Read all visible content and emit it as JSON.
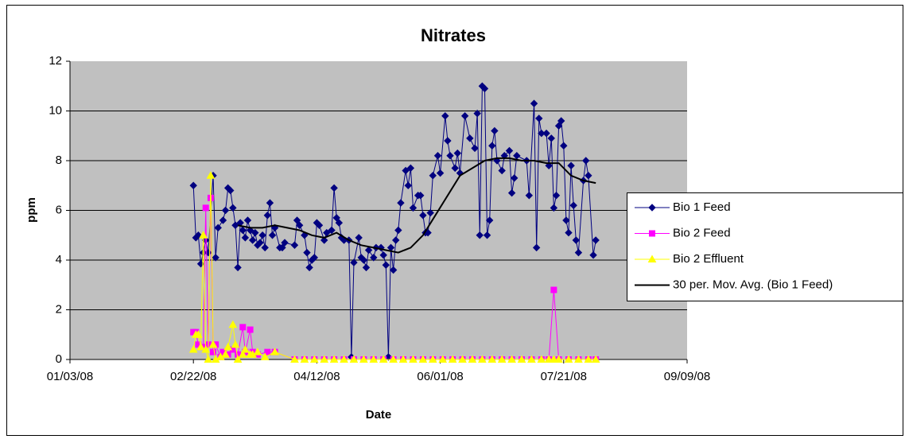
{
  "chart_data": {
    "type": "line",
    "title": "Nitrates",
    "xlabel": "Date",
    "ylabel": "ppm",
    "xlim": [
      "2008-01-03",
      "2008-09-09"
    ],
    "xticks": [
      {
        "value": "2008-01-03",
        "label": "01/03/08"
      },
      {
        "value": "2008-02-22",
        "label": "02/22/08"
      },
      {
        "value": "2008-04-12",
        "label": "04/12/08"
      },
      {
        "value": "2008-06-01",
        "label": "06/01/08"
      },
      {
        "value": "2008-07-21",
        "label": "07/21/08"
      },
      {
        "value": "2008-09-09",
        "label": "09/09/08"
      }
    ],
    "ylim": [
      0,
      12
    ],
    "yticks": [
      0,
      2,
      4,
      6,
      8,
      10,
      12
    ],
    "grid": true,
    "legend": "right",
    "series": [
      {
        "name": "Bio 1 Feed",
        "color": "#000080",
        "marker": "diamond",
        "x": [
          "2008-02-22",
          "2008-02-23",
          "2008-02-24",
          "2008-02-25",
          "2008-02-26",
          "2008-02-27",
          "2008-02-28",
          "2008-03-01",
          "2008-03-02",
          "2008-03-03",
          "2008-03-05",
          "2008-03-06",
          "2008-03-07",
          "2008-03-08",
          "2008-03-09",
          "2008-03-10",
          "2008-03-11",
          "2008-03-12",
          "2008-03-13",
          "2008-03-14",
          "2008-03-15",
          "2008-03-16",
          "2008-03-17",
          "2008-03-18",
          "2008-03-19",
          "2008-03-20",
          "2008-03-21",
          "2008-03-22",
          "2008-03-23",
          "2008-03-24",
          "2008-03-25",
          "2008-03-26",
          "2008-03-28",
          "2008-03-29",
          "2008-03-30",
          "2008-04-03",
          "2008-04-04",
          "2008-04-05",
          "2008-04-07",
          "2008-04-08",
          "2008-04-09",
          "2008-04-10",
          "2008-04-11",
          "2008-04-12",
          "2008-04-13",
          "2008-04-15",
          "2008-04-16",
          "2008-04-18",
          "2008-04-19",
          "2008-04-20",
          "2008-04-21",
          "2008-04-22",
          "2008-04-23",
          "2008-04-25",
          "2008-04-26",
          "2008-04-27",
          "2008-04-29",
          "2008-04-30",
          "2008-05-01",
          "2008-05-02",
          "2008-05-03",
          "2008-05-05",
          "2008-05-06",
          "2008-05-08",
          "2008-05-09",
          "2008-05-10",
          "2008-05-11",
          "2008-05-12",
          "2008-05-13",
          "2008-05-14",
          "2008-05-15",
          "2008-05-16",
          "2008-05-18",
          "2008-05-19",
          "2008-05-20",
          "2008-05-21",
          "2008-05-23",
          "2008-05-24",
          "2008-05-25",
          "2008-05-26",
          "2008-05-27",
          "2008-05-28",
          "2008-05-29",
          "2008-05-31",
          "2008-06-01",
          "2008-06-03",
          "2008-06-04",
          "2008-06-05",
          "2008-06-07",
          "2008-06-08",
          "2008-06-09",
          "2008-06-11",
          "2008-06-13",
          "2008-06-15",
          "2008-06-16",
          "2008-06-17",
          "2008-06-18",
          "2008-06-19",
          "2008-06-20",
          "2008-06-21",
          "2008-06-22",
          "2008-06-23",
          "2008-06-24",
          "2008-06-26",
          "2008-06-27",
          "2008-06-29",
          "2008-06-30",
          "2008-07-01",
          "2008-07-02",
          "2008-07-06",
          "2008-07-07",
          "2008-07-09",
          "2008-07-10",
          "2008-07-11",
          "2008-07-12",
          "2008-07-14",
          "2008-07-15",
          "2008-07-16",
          "2008-07-17",
          "2008-07-18",
          "2008-07-19",
          "2008-07-20",
          "2008-07-21",
          "2008-07-22",
          "2008-07-23",
          "2008-07-24",
          "2008-07-25",
          "2008-07-26",
          "2008-07-27",
          "2008-07-29",
          "2008-07-30",
          "2008-07-31",
          "2008-08-02",
          "2008-08-03"
        ],
        "values": [
          7.0,
          4.9,
          5.0,
          3.85,
          4.3,
          4.8,
          4.3,
          7.4,
          4.1,
          5.3,
          5.6,
          6.0,
          6.9,
          6.8,
          6.1,
          5.4,
          3.7,
          5.5,
          5.2,
          4.9,
          5.6,
          5.2,
          4.8,
          5.1,
          4.6,
          4.7,
          5.0,
          4.5,
          5.8,
          6.3,
          5.0,
          5.3,
          4.5,
          4.5,
          4.7,
          4.6,
          5.6,
          5.4,
          5.0,
          4.3,
          3.7,
          4.0,
          4.1,
          5.5,
          5.4,
          4.8,
          5.1,
          5.2,
          6.9,
          5.7,
          5.5,
          4.9,
          4.8,
          4.8,
          0.1,
          3.9,
          4.9,
          4.1,
          4.0,
          3.7,
          4.4,
          4.1,
          4.5,
          4.5,
          4.2,
          3.8,
          0.1,
          4.5,
          3.6,
          4.8,
          5.2,
          6.3,
          7.6,
          7.0,
          7.7,
          6.1,
          6.6,
          6.6,
          5.8,
          5.1,
          5.1,
          5.9,
          7.4,
          8.2,
          7.5,
          9.8,
          8.8,
          8.2,
          7.7,
          8.3,
          7.5,
          9.8,
          8.9,
          8.5,
          9.9,
          5.0,
          11.0,
          10.9,
          5.0,
          5.6,
          8.6,
          9.2,
          8.0,
          7.6,
          8.2,
          8.4,
          6.7,
          7.3,
          8.2,
          8.0,
          6.6,
          10.3,
          4.5,
          9.7,
          9.1,
          9.1,
          7.8,
          8.9,
          6.1,
          6.6,
          9.4,
          9.6,
          8.6,
          5.6,
          5.1,
          7.8,
          6.2,
          4.8,
          4.3,
          7.2,
          8.0,
          7.4,
          4.2,
          4.8
        ]
      },
      {
        "name": "Bio 2 Feed",
        "color": "#FF00FF",
        "marker": "square",
        "x": [
          "2008-02-22",
          "2008-02-23",
          "2008-02-24",
          "2008-02-26",
          "2008-02-27",
          "2008-02-28",
          "2008-02-29",
          "2008-03-01",
          "2008-03-02",
          "2008-03-04",
          "2008-03-05",
          "2008-03-07",
          "2008-03-09",
          "2008-03-11",
          "2008-03-13",
          "2008-03-14",
          "2008-03-16",
          "2008-03-17",
          "2008-03-19",
          "2008-03-23",
          "2008-03-26",
          "2008-04-03",
          "2008-04-07",
          "2008-04-11",
          "2008-04-15",
          "2008-04-19",
          "2008-04-23",
          "2008-04-27",
          "2008-05-01",
          "2008-05-05",
          "2008-05-09",
          "2008-05-13",
          "2008-05-17",
          "2008-05-21",
          "2008-05-25",
          "2008-05-29",
          "2008-06-02",
          "2008-06-06",
          "2008-06-10",
          "2008-06-14",
          "2008-06-18",
          "2008-06-22",
          "2008-06-26",
          "2008-06-30",
          "2008-07-04",
          "2008-07-08",
          "2008-07-12",
          "2008-07-15",
          "2008-07-17",
          "2008-07-19",
          "2008-07-23",
          "2008-07-27",
          "2008-07-31",
          "2008-08-03"
        ],
        "values": [
          1.1,
          1.1,
          0.6,
          0.5,
          6.1,
          0.6,
          6.5,
          0.3,
          0.6,
          0.1,
          0.3,
          0.2,
          0.4,
          0.2,
          1.3,
          0.3,
          1.2,
          0.3,
          0.2,
          0.3,
          0.3,
          0,
          0,
          0,
          0,
          0,
          0,
          0,
          0,
          0,
          0,
          0,
          0,
          0,
          0,
          0,
          0,
          0,
          0,
          0,
          0,
          0,
          0,
          0,
          0,
          0,
          0,
          0,
          2.8,
          0,
          0,
          0,
          0,
          0
        ]
      },
      {
        "name": "Bio 2 Effluent",
        "color": "#FFFF00",
        "marker": "triangle",
        "x": [
          "2008-02-22",
          "2008-02-23",
          "2008-02-24",
          "2008-02-25",
          "2008-02-26",
          "2008-02-27",
          "2008-02-28",
          "2008-02-29",
          "2008-03-01",
          "2008-03-02",
          "2008-03-04",
          "2008-03-06",
          "2008-03-07",
          "2008-03-09",
          "2008-03-10",
          "2008-03-11",
          "2008-03-13",
          "2008-03-14",
          "2008-03-16",
          "2008-03-17",
          "2008-03-19",
          "2008-03-22",
          "2008-03-26",
          "2008-04-03",
          "2008-04-07",
          "2008-04-11",
          "2008-04-15",
          "2008-04-19",
          "2008-04-23",
          "2008-04-27",
          "2008-05-01",
          "2008-05-05",
          "2008-05-09",
          "2008-05-13",
          "2008-05-17",
          "2008-05-21",
          "2008-05-25",
          "2008-05-29",
          "2008-06-02",
          "2008-06-06",
          "2008-06-10",
          "2008-06-14",
          "2008-06-18",
          "2008-06-22",
          "2008-06-26",
          "2008-06-30",
          "2008-07-04",
          "2008-07-08",
          "2008-07-12",
          "2008-07-15",
          "2008-07-17",
          "2008-07-19",
          "2008-07-23",
          "2008-07-27",
          "2008-07-31",
          "2008-08-03"
        ],
        "values": [
          0.4,
          1.0,
          1.0,
          0.5,
          5.0,
          0.4,
          0.0,
          7.4,
          0.6,
          0.0,
          0.1,
          0.2,
          0.5,
          1.4,
          0.6,
          0.0,
          0.2,
          0.4,
          0.2,
          0.2,
          0.3,
          0.1,
          0.3,
          0,
          0,
          0,
          0,
          0,
          0,
          0,
          0,
          0,
          0,
          0,
          0,
          0,
          0,
          0,
          0,
          0,
          0,
          0,
          0,
          0,
          0,
          0,
          0,
          0,
          0,
          0,
          0,
          0,
          0,
          0,
          0,
          0
        ]
      },
      {
        "name": "30 per. Mov. Avg. (Bio 1 Feed)",
        "color": "#000000",
        "marker": "none",
        "x": [
          "2008-03-11",
          "2008-03-16",
          "2008-03-21",
          "2008-03-26",
          "2008-03-31",
          "2008-04-05",
          "2008-04-10",
          "2008-04-15",
          "2008-04-20",
          "2008-04-25",
          "2008-04-30",
          "2008-05-05",
          "2008-05-10",
          "2008-05-15",
          "2008-05-20",
          "2008-05-25",
          "2008-05-30",
          "2008-06-04",
          "2008-06-09",
          "2008-06-14",
          "2008-06-19",
          "2008-06-24",
          "2008-06-29",
          "2008-07-04",
          "2008-07-09",
          "2008-07-14",
          "2008-07-19",
          "2008-07-24",
          "2008-07-29",
          "2008-08-03"
        ],
        "values": [
          5.4,
          5.3,
          5.3,
          5.4,
          5.3,
          5.2,
          5.0,
          4.9,
          5.1,
          4.8,
          4.6,
          4.5,
          4.4,
          4.3,
          4.5,
          5.0,
          5.8,
          6.6,
          7.4,
          7.7,
          8.0,
          8.1,
          8.1,
          8.0,
          8.0,
          7.9,
          7.9,
          7.4,
          7.2,
          7.1
        ]
      }
    ]
  }
}
